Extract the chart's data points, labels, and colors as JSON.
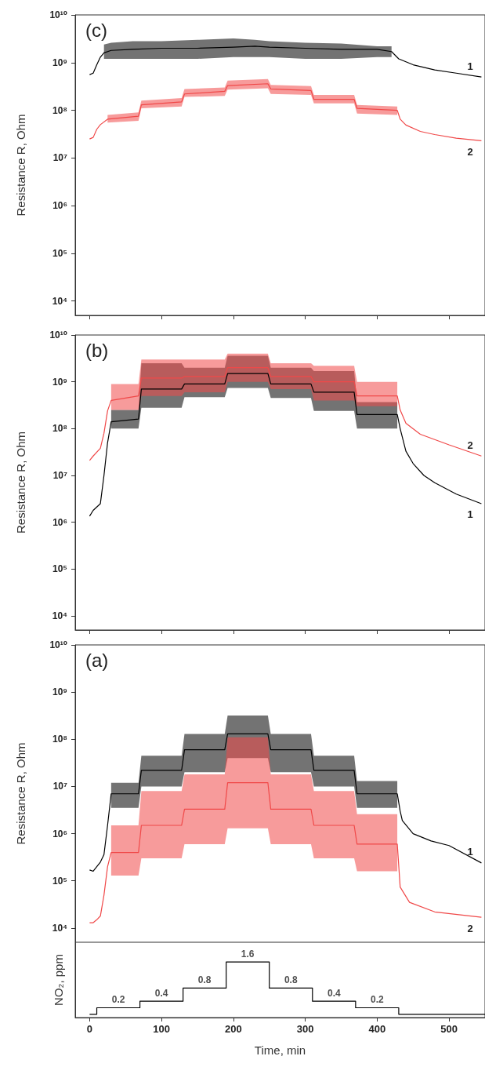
{
  "chart_data": [
    {
      "type": "line",
      "title": "(c)",
      "ylabel": "Resistance R, Ohm",
      "log": "y",
      "grid": false,
      "marker": "none",
      "tick_labels": "y",
      "xlim": [
        -20,
        550
      ],
      "xticks": [
        0,
        100,
        200,
        300,
        400,
        500
      ],
      "ylim": [
        5000,
        10000000000
      ],
      "yticks": [
        {
          "value": 10000,
          "label": "10⁴"
        },
        {
          "value": 100000,
          "label": "10⁵"
        },
        {
          "value": 1000000,
          "label": "10⁶"
        },
        {
          "value": 10000000,
          "label": "10⁷"
        },
        {
          "value": 100000000,
          "label": "10⁸"
        },
        {
          "value": 1000000000,
          "label": "10⁹"
        },
        {
          "value": 10000000000,
          "label": "10¹⁰"
        }
      ],
      "series": [
        {
          "name": "1",
          "color": "#000000",
          "x": [
            0,
            5,
            10,
            15,
            20,
            30,
            60,
            100,
            150,
            200,
            230,
            250,
            300,
            350,
            400,
            420,
            430,
            450,
            480,
            510,
            545
          ],
          "values": [
            560000000.0,
            600000000.0,
            900000000.0,
            1300000000.0,
            1600000000.0,
            1800000000.0,
            1900000000.0,
            2000000000.0,
            2000000000.0,
            2100000000.0,
            2200000000.0,
            2100000000.0,
            2000000000.0,
            1900000000.0,
            1900000000.0,
            1700000000.0,
            1200000000.0,
            900000000.0,
            700000000.0,
            600000000.0,
            500000000.0
          ],
          "lower": [
            null,
            null,
            null,
            null,
            1200000000.0,
            1200000000.0,
            1200000000.0,
            1200000000.0,
            1200000000.0,
            1300000000.0,
            1300000000.0,
            1300000000.0,
            1200000000.0,
            1200000000.0,
            1300000000.0,
            1300000000.0,
            null,
            null,
            null,
            null,
            null
          ],
          "upper": [
            null,
            null,
            null,
            null,
            2400000000.0,
            2600000000.0,
            2800000000.0,
            2800000000.0,
            3000000000.0,
            3200000000.0,
            3000000000.0,
            2800000000.0,
            2600000000.0,
            2500000000.0,
            2200000000.0,
            2200000000.0,
            null,
            null,
            null,
            null,
            null
          ]
        },
        {
          "name": "2",
          "color": "#f04848",
          "x": [
            0,
            5,
            10,
            15,
            25,
            68,
            72,
            128,
            132,
            188,
            192,
            248,
            252,
            308,
            312,
            368,
            372,
            428,
            432,
            440,
            460,
            480,
            510,
            545
          ],
          "values": [
            25000000.0,
            27000000.0,
            40000000.0,
            50000000.0,
            65000000.0,
            75000000.0,
            130000000.0,
            150000000.0,
            220000000.0,
            250000000.0,
            330000000.0,
            360000000.0,
            280000000.0,
            260000000.0,
            170000000.0,
            170000000.0,
            110000000.0,
            100000000.0,
            65000000.0,
            49000000.0,
            36000000.0,
            31000000.0,
            26000000.0,
            23000000.0
          ],
          "lower": [
            null,
            null,
            null,
            null,
            55000000.0,
            60000000.0,
            110000000.0,
            120000000.0,
            190000000.0,
            200000000.0,
            270000000.0,
            290000000.0,
            220000000.0,
            210000000.0,
            140000000.0,
            140000000.0,
            85000000.0,
            80000000.0,
            null,
            null,
            null,
            null,
            null,
            null
          ],
          "upper": [
            null,
            null,
            null,
            null,
            80000000.0,
            90000000.0,
            160000000.0,
            180000000.0,
            280000000.0,
            300000000.0,
            420000000.0,
            450000000.0,
            340000000.0,
            320000000.0,
            210000000.0,
            210000000.0,
            130000000.0,
            120000000.0,
            null,
            null,
            null,
            null,
            null,
            null
          ]
        }
      ]
    },
    {
      "type": "line",
      "title": "(b)",
      "ylabel": "Resistance R, Ohm",
      "log": "y",
      "grid": false,
      "marker": "none",
      "tick_labels": "y",
      "xlim": [
        -20,
        550
      ],
      "xticks": [
        0,
        100,
        200,
        300,
        400,
        500
      ],
      "ylim": [
        5000,
        10000000000
      ],
      "yticks": [
        {
          "value": 10000,
          "label": "10⁴"
        },
        {
          "value": 100000,
          "label": "10⁵"
        },
        {
          "value": 1000000,
          "label": "10⁶"
        },
        {
          "value": 10000000,
          "label": "10⁷"
        },
        {
          "value": 100000000,
          "label": "10⁸"
        },
        {
          "value": 1000000000,
          "label": "10⁹"
        },
        {
          "value": 10000000000,
          "label": "10¹⁰"
        }
      ],
      "series": [
        {
          "name": "1",
          "color": "#000000",
          "x": [
            0,
            5,
            15,
            20,
            25,
            30,
            68,
            72,
            128,
            132,
            188,
            192,
            248,
            252,
            308,
            312,
            368,
            372,
            428,
            432,
            440,
            450,
            465,
            480,
            510,
            545
          ],
          "values": [
            1350000.0,
            1800000.0,
            2500000.0,
            10000000.0,
            50000000.0,
            140000000.0,
            160000000.0,
            700000000.0,
            700000000.0,
            900000000.0,
            900000000.0,
            1500000000.0,
            1500000000.0,
            900000000.0,
            900000000.0,
            600000000.0,
            600000000.0,
            200000000.0,
            200000000.0,
            100000000.0,
            33000000.0,
            18000000.0,
            10000000.0,
            7000000.0,
            4000000.0,
            2500000.0
          ],
          "lower": [
            null,
            null,
            null,
            null,
            null,
            100000000.0,
            100000000.0,
            280000000.0,
            280000000.0,
            470000000.0,
            470000000.0,
            740000000.0,
            740000000.0,
            450000000.0,
            450000000.0,
            240000000.0,
            240000000.0,
            100000000.0,
            100000000.0,
            null,
            null,
            null,
            null,
            null,
            null,
            null
          ],
          "upper": [
            null,
            null,
            null,
            null,
            null,
            250000000.0,
            250000000.0,
            2500000000.0,
            2500000000.0,
            2000000000.0,
            2000000000.0,
            3600000000.0,
            3600000000.0,
            2000000000.0,
            2000000000.0,
            1700000000.0,
            1700000000.0,
            370000000.0,
            370000000.0,
            null,
            null,
            null,
            null,
            null,
            null,
            null
          ]
        },
        {
          "name": "2",
          "color": "#f04848",
          "x": [
            0,
            5,
            15,
            20,
            25,
            30,
            68,
            72,
            128,
            132,
            188,
            192,
            248,
            252,
            308,
            312,
            368,
            372,
            428,
            432,
            440,
            460,
            500,
            545
          ],
          "values": [
            21000000.0,
            26000000.0,
            38000000.0,
            80000000.0,
            240000000.0,
            400000000.0,
            500000000.0,
            1200000000.0,
            1200000000.0,
            1300000000.0,
            1300000000.0,
            2000000000.0,
            2000000000.0,
            1300000000.0,
            1300000000.0,
            1000000000.0,
            1000000000.0,
            500000000.0,
            500000000.0,
            250000000.0,
            130000000.0,
            76000000.0,
            45000000.0,
            26000000.0
          ],
          "lower": [
            null,
            null,
            null,
            null,
            null,
            250000000.0,
            250000000.0,
            500000000.0,
            500000000.0,
            600000000.0,
            600000000.0,
            1000000000.0,
            1000000000.0,
            700000000.0,
            700000000.0,
            400000000.0,
            400000000.0,
            300000000.0,
            300000000.0,
            null,
            null,
            null,
            null,
            null
          ],
          "upper": [
            null,
            null,
            null,
            null,
            null,
            900000000.0,
            900000000.0,
            3000000000.0,
            3000000000.0,
            3000000000.0,
            3000000000.0,
            4000000000.0,
            4000000000.0,
            2500000000.0,
            2500000000.0,
            2200000000.0,
            2200000000.0,
            1000000000.0,
            1000000000.0,
            null,
            null,
            null,
            null,
            null
          ]
        }
      ]
    },
    {
      "type": "line",
      "title": "(a)",
      "ylabel": "Resistance R, Ohm",
      "log": "y",
      "grid": false,
      "marker": "none",
      "tick_labels": "y",
      "xlim": [
        -20,
        550
      ],
      "xticks": [
        0,
        100,
        200,
        300,
        400,
        500
      ],
      "ylim": [
        5000,
        10000000000
      ],
      "yticks": [
        {
          "value": 10000,
          "label": "10⁴"
        },
        {
          "value": 100000,
          "label": "10⁵"
        },
        {
          "value": 1000000,
          "label": "10⁶"
        },
        {
          "value": 10000000,
          "label": "10⁷"
        },
        {
          "value": 100000000,
          "label": "10⁸"
        },
        {
          "value": 1000000000,
          "label": "10⁹"
        },
        {
          "value": 10000000000,
          "label": "10¹⁰"
        }
      ],
      "series": [
        {
          "name": "1",
          "color": "#000000",
          "x": [
            0,
            5,
            10,
            15,
            20,
            25,
            30,
            68,
            72,
            128,
            132,
            188,
            192,
            248,
            252,
            308,
            312,
            368,
            372,
            428,
            432,
            435,
            450,
            475,
            500,
            545
          ],
          "values": [
            170000.0,
            160000.0,
            200000.0,
            250000.0,
            360000.0,
            1500000.0,
            7000000.0,
            7000000.0,
            22000000.0,
            22000000.0,
            60000000.0,
            60000000.0,
            130000000.0,
            130000000.0,
            60000000.0,
            60000000.0,
            22000000.0,
            22000000.0,
            7000000.0,
            7000000.0,
            3000000.0,
            1900000.0,
            1000000.0,
            700000.0,
            560000.0,
            240000.0
          ],
          "lower": [
            null,
            null,
            null,
            null,
            null,
            null,
            3500000.0,
            3500000.0,
            10000000.0,
            10000000.0,
            20000000.0,
            20000000.0,
            40000000.0,
            40000000.0,
            20000000.0,
            20000000.0,
            10000000.0,
            10000000.0,
            3500000.0,
            3500000.0,
            null,
            null,
            null,
            null,
            null,
            null
          ],
          "upper": [
            null,
            null,
            null,
            null,
            null,
            null,
            12000000.0,
            12000000.0,
            45000000.0,
            45000000.0,
            130000000.0,
            130000000.0,
            320000000.0,
            320000000.0,
            130000000.0,
            130000000.0,
            45000000.0,
            45000000.0,
            13000000.0,
            13000000.0,
            null,
            null,
            null,
            null,
            null,
            null
          ]
        },
        {
          "name": "2",
          "color": "#f04848",
          "x": [
            0,
            5,
            10,
            15,
            20,
            25,
            30,
            68,
            72,
            128,
            132,
            188,
            192,
            248,
            252,
            308,
            312,
            368,
            372,
            428,
            432,
            445,
            480,
            545
          ],
          "values": [
            13000.0,
            13000.0,
            15000.0,
            18000.0,
            50000.0,
            200000.0,
            400000.0,
            400000.0,
            1500000.0,
            1500000.0,
            3300000.0,
            3300000.0,
            12000000.0,
            12000000.0,
            3300000.0,
            3300000.0,
            1500000.0,
            1500000.0,
            600000.0,
            600000.0,
            74000.0,
            35000.0,
            22000.0,
            17000.0
          ],
          "lower": [
            null,
            null,
            null,
            null,
            null,
            null,
            130000.0,
            130000.0,
            300000.0,
            300000.0,
            600000.0,
            600000.0,
            1300000.0,
            1300000.0,
            600000.0,
            600000.0,
            300000.0,
            300000.0,
            160000.0,
            160000.0,
            null,
            null,
            null,
            null
          ],
          "upper": [
            null,
            null,
            null,
            null,
            null,
            null,
            1500000.0,
            1500000.0,
            8000000.0,
            8000000.0,
            18000000.0,
            18000000.0,
            110000000.0,
            110000000.0,
            18000000.0,
            18000000.0,
            8000000.0,
            8000000.0,
            2600000.0,
            2600000.0,
            null,
            null,
            null,
            null
          ]
        }
      ]
    },
    {
      "type": "step",
      "xlabel": "Time, min",
      "ylabel": "NO₂, ppm",
      "grid": false,
      "marker": "none",
      "tick_labels": "x",
      "xlim": [
        -20,
        550
      ],
      "xticks": [
        0,
        100,
        200,
        300,
        400,
        500
      ],
      "ylim": [
        -0.1,
        2.2
      ],
      "color": "#000000",
      "x": [
        0,
        10,
        70,
        130,
        190,
        250,
        310,
        370,
        430,
        550
      ],
      "values": [
        0,
        0.2,
        0.4,
        0.8,
        1.6,
        0.8,
        0.4,
        0.2,
        0,
        0
      ],
      "value_labels": [
        null,
        "0.2",
        "0.4",
        "0.8",
        "1.6",
        "0.8",
        "0.4",
        "0.2",
        null,
        null
      ]
    }
  ]
}
